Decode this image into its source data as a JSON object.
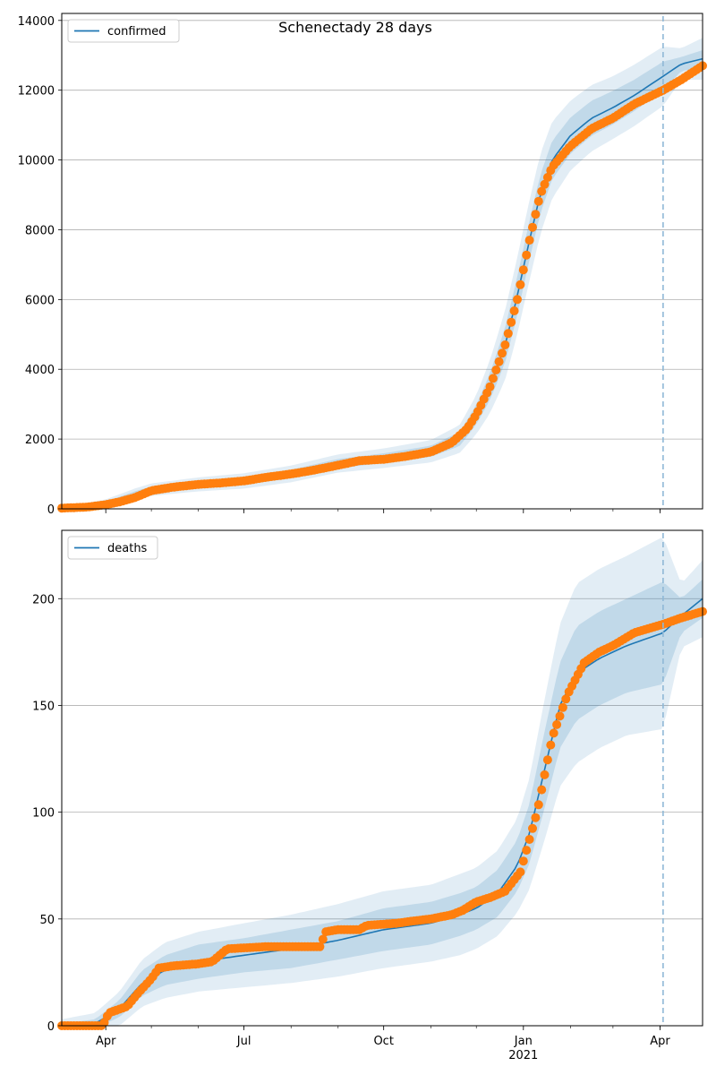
{
  "figure": {
    "title": "Schenectady 28 days"
  },
  "colors": {
    "model": "#1f77b4",
    "observed": "#ff7f0e",
    "band": "#1f77b4",
    "grid": "#b0b0b0",
    "forecast_line": "#8fb8d6"
  },
  "x_axis": {
    "ticks": [
      {
        "label": "Apr",
        "date": "2020-04-01"
      },
      {
        "label": "Jul",
        "date": "2020-07-01"
      },
      {
        "label": "Oct",
        "date": "2020-10-01"
      },
      {
        "label": "Jan",
        "date": "2021-01-01",
        "sublabel": "2021"
      },
      {
        "label": "Apr",
        "date": "2021-04-01"
      }
    ],
    "range": [
      "2020-03-03",
      "2021-04-29"
    ],
    "forecast_start": "2021-04-03"
  },
  "chart_data": [
    {
      "type": "line",
      "legend": "confirmed",
      "legend_position": "upper-left",
      "grid": "horizontal",
      "ylim": [
        0,
        14200
      ],
      "yticks": [
        0,
        2000,
        4000,
        6000,
        8000,
        10000,
        12000,
        14000
      ],
      "model": {
        "x": [
          "2020-03-03",
          "2020-04-01",
          "2020-04-20",
          "2020-05-01",
          "2020-06-01",
          "2020-07-01",
          "2020-08-01",
          "2020-09-01",
          "2020-10-01",
          "2020-11-01",
          "2020-11-20",
          "2020-12-01",
          "2020-12-10",
          "2020-12-20",
          "2020-12-28",
          "2021-01-05",
          "2021-01-12",
          "2021-01-20",
          "2021-02-01",
          "2021-02-15",
          "2021-03-01",
          "2021-03-15",
          "2021-04-03",
          "2021-04-15",
          "2021-04-29"
        ],
        "y": [
          10,
          150,
          420,
          550,
          700,
          800,
          1000,
          1300,
          1450,
          1650,
          2000,
          2700,
          3500,
          4700,
          6100,
          7700,
          9000,
          10000,
          10700,
          11200,
          11500,
          11850,
          12400,
          12750,
          12900
        ],
        "band_inner_halfwidth": [
          15,
          60,
          80,
          90,
          100,
          110,
          120,
          130,
          140,
          160,
          200,
          280,
          380,
          500,
          550,
          560,
          550,
          550,
          520,
          500,
          480,
          450,
          420,
          200,
          250
        ],
        "band_outer_halfwidth": [
          30,
          120,
          160,
          180,
          200,
          220,
          240,
          260,
          280,
          320,
          400,
          560,
          760,
          1000,
          1100,
          1150,
          1150,
          1100,
          1000,
          950,
          900,
          880,
          850,
          450,
          600
        ]
      },
      "observed": {
        "x": [
          "2020-03-03",
          "2020-03-20",
          "2020-04-01",
          "2020-04-10",
          "2020-04-20",
          "2020-05-01",
          "2020-05-15",
          "2020-06-01",
          "2020-06-15",
          "2020-07-01",
          "2020-07-15",
          "2020-08-01",
          "2020-08-15",
          "2020-09-01",
          "2020-09-15",
          "2020-10-01",
          "2020-10-15",
          "2020-11-01",
          "2020-11-15",
          "2020-11-25",
          "2020-12-01",
          "2020-12-10",
          "2020-12-20",
          "2020-12-28",
          "2021-01-05",
          "2021-01-12",
          "2021-01-20",
          "2021-02-01",
          "2021-02-15",
          "2021-03-01",
          "2021-03-15",
          "2021-04-03",
          "2021-04-15",
          "2021-04-29"
        ],
        "y": [
          20,
          50,
          120,
          200,
          320,
          520,
          620,
          700,
          740,
          800,
          900,
          1000,
          1100,
          1250,
          1380,
          1420,
          1500,
          1630,
          1900,
          2300,
          2700,
          3500,
          4700,
          6000,
          7700,
          9000,
          9800,
          10400,
          10900,
          11200,
          11600,
          12000,
          12300,
          12700
        ]
      }
    },
    {
      "type": "line",
      "legend": "deaths",
      "legend_position": "upper-left",
      "grid": "horizontal",
      "ylim": [
        0,
        232
      ],
      "yticks": [
        0,
        50,
        100,
        150,
        200
      ],
      "model": {
        "x": [
          "2020-03-03",
          "2020-03-25",
          "2020-04-10",
          "2020-04-25",
          "2020-05-10",
          "2020-06-01",
          "2020-07-01",
          "2020-08-01",
          "2020-09-01",
          "2020-10-01",
          "2020-11-01",
          "2020-11-20",
          "2020-12-01",
          "2020-12-15",
          "2020-12-28",
          "2021-01-05",
          "2021-01-15",
          "2021-01-25",
          "2021-02-05",
          "2021-02-20",
          "2021-03-10",
          "2021-04-03",
          "2021-04-15",
          "2021-04-29"
        ],
        "y": [
          0,
          1,
          8,
          20,
          26,
          30,
          33,
          36,
          40,
          45,
          48,
          52,
          55,
          62,
          75,
          90,
          120,
          150,
          165,
          172,
          178,
          184,
          192,
          200
        ],
        "band_inner_halfwidth": [
          1,
          2,
          4,
          6,
          7,
          8,
          8,
          9,
          9,
          10,
          10,
          10,
          10,
          11,
          12,
          14,
          18,
          20,
          22,
          22,
          22,
          24,
          8,
          9
        ],
        "band_outer_halfwidth": [
          3,
          5,
          8,
          11,
          13,
          14,
          15,
          16,
          17,
          18,
          18,
          19,
          19,
          20,
          22,
          26,
          33,
          38,
          42,
          42,
          42,
          45,
          15,
          18
        ]
      },
      "observed": {
        "x": [
          "2020-03-03",
          "2020-03-30",
          "2020-04-03",
          "2020-04-07",
          "2020-04-15",
          "2020-04-22",
          "2020-05-01",
          "2020-05-06",
          "2020-05-15",
          "2020-06-01",
          "2020-06-10",
          "2020-06-20",
          "2020-07-15",
          "2020-08-10",
          "2020-08-20",
          "2020-08-24",
          "2020-09-01",
          "2020-09-15",
          "2020-09-20",
          "2020-10-10",
          "2020-10-20",
          "2020-11-01",
          "2020-11-15",
          "2020-11-22",
          "2020-12-01",
          "2020-12-10",
          "2020-12-20",
          "2020-12-30",
          "2021-01-10",
          "2021-01-20",
          "2021-01-30",
          "2021-02-10",
          "2021-02-20",
          "2021-03-01",
          "2021-03-15",
          "2021-04-03",
          "2021-04-15",
          "2021-04-29"
        ],
        "y": [
          0,
          0,
          6,
          7,
          9,
          15,
          22,
          27,
          28,
          29,
          30,
          36,
          37,
          37,
          37,
          44,
          45,
          45,
          47,
          48,
          49,
          50,
          52,
          54,
          58,
          60,
          63,
          72,
          100,
          135,
          155,
          170,
          175,
          178,
          184,
          188,
          191,
          194
        ]
      }
    }
  ]
}
